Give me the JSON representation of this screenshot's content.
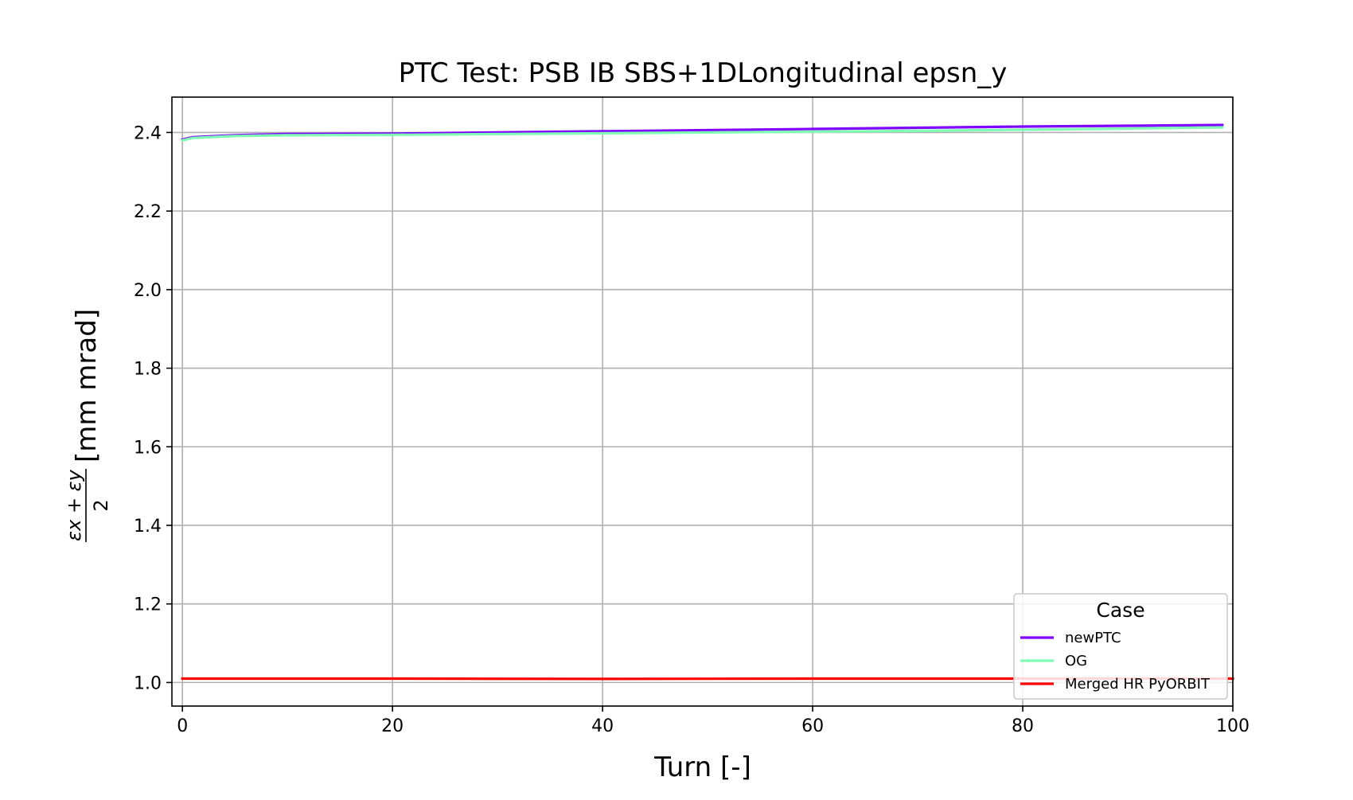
{
  "chart_data": {
    "type": "line",
    "title": "PTC Test: PSB IB SBS+1DLongitudinal epsn_y",
    "xlabel": "Turn [-]",
    "ylabel": {
      "numerator": "εx + εy",
      "denominator": "2",
      "unit": "[mm mrad]"
    },
    "xlim": [
      -1,
      100
    ],
    "ylim": [
      0.94,
      2.49
    ],
    "x_ticks": [
      0,
      20,
      40,
      60,
      80,
      100
    ],
    "y_ticks": [
      1.0,
      1.2,
      1.4,
      1.6,
      1.8,
      2.0,
      2.2,
      2.4
    ],
    "grid": true,
    "legend": {
      "title": "Case",
      "placement": "lower-right"
    },
    "series": [
      {
        "name": "newPTC",
        "color": "#8000ff",
        "x": [
          0,
          1,
          5,
          10,
          20,
          30,
          40,
          50,
          60,
          70,
          80,
          90,
          99
        ],
        "y": [
          2.382,
          2.388,
          2.393,
          2.396,
          2.397,
          2.4,
          2.403,
          2.406,
          2.409,
          2.412,
          2.415,
          2.417,
          2.419
        ]
      },
      {
        "name": "OG",
        "color": "#80ffb4",
        "x": [
          0,
          1,
          5,
          10,
          20,
          30,
          40,
          50,
          60,
          70,
          80,
          90,
          99
        ],
        "y": [
          2.38,
          2.386,
          2.391,
          2.393,
          2.394,
          2.396,
          2.398,
          2.4,
          2.402,
          2.404,
          2.407,
          2.41,
          2.413
        ]
      },
      {
        "name": "Merged HR PyORBIT",
        "color": "#ff0000",
        "x": [
          0,
          20,
          40,
          60,
          80,
          100
        ],
        "y": [
          1.01,
          1.01,
          1.009,
          1.01,
          1.01,
          1.01
        ]
      }
    ]
  }
}
